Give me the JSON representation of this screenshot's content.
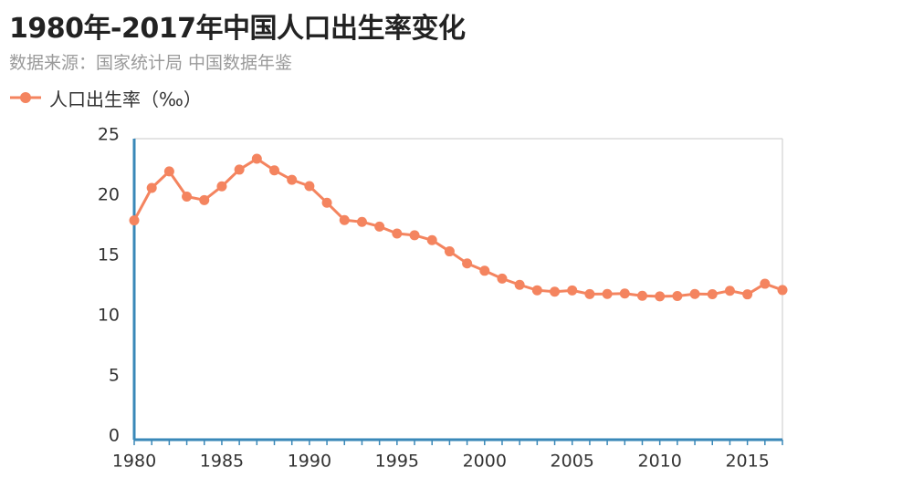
{
  "header": {
    "title": "1980年-2017年中国人口出生率变化",
    "subtitle": "数据来源：国家统计局 中国数据年鉴"
  },
  "colors": {
    "series": "#f4845f",
    "axis": "#3a88b8",
    "frame": "#c8c8c8",
    "text": "#333333",
    "subtitle": "#9a9a9a"
  },
  "chart_data": {
    "type": "line",
    "title": "1980年-2017年中国人口出生率变化",
    "subtitle": "数据来源：国家统计局 中国数据年鉴",
    "xlabel": "",
    "ylabel": "",
    "xlim": [
      1980,
      2017
    ],
    "ylim": [
      0,
      25
    ],
    "x_ticks": [
      1980,
      1985,
      1990,
      1995,
      2000,
      2005,
      2010,
      2015
    ],
    "y_ticks": [
      0,
      5,
      10,
      15,
      20,
      25
    ],
    "grid": false,
    "legend": "top-left",
    "x": [
      1980,
      1981,
      1982,
      1983,
      1984,
      1985,
      1986,
      1987,
      1988,
      1989,
      1990,
      1991,
      1992,
      1993,
      1994,
      1995,
      1996,
      1997,
      1998,
      1999,
      2000,
      2001,
      2002,
      2003,
      2004,
      2005,
      2006,
      2007,
      2008,
      2009,
      2010,
      2011,
      2012,
      2013,
      2014,
      2015,
      2016,
      2017
    ],
    "series": [
      {
        "name": "人口出生率（‰）",
        "values": [
          18.21,
          20.91,
          22.28,
          20.19,
          19.9,
          21.04,
          22.43,
          23.33,
          22.37,
          21.58,
          21.06,
          19.68,
          18.24,
          18.09,
          17.7,
          17.12,
          16.98,
          16.57,
          15.64,
          14.64,
          14.03,
          13.38,
          12.86,
          12.41,
          12.29,
          12.4,
          12.09,
          12.1,
          12.14,
          11.95,
          11.9,
          11.93,
          12.1,
          12.08,
          12.37,
          12.07,
          12.95,
          12.43
        ]
      }
    ]
  }
}
